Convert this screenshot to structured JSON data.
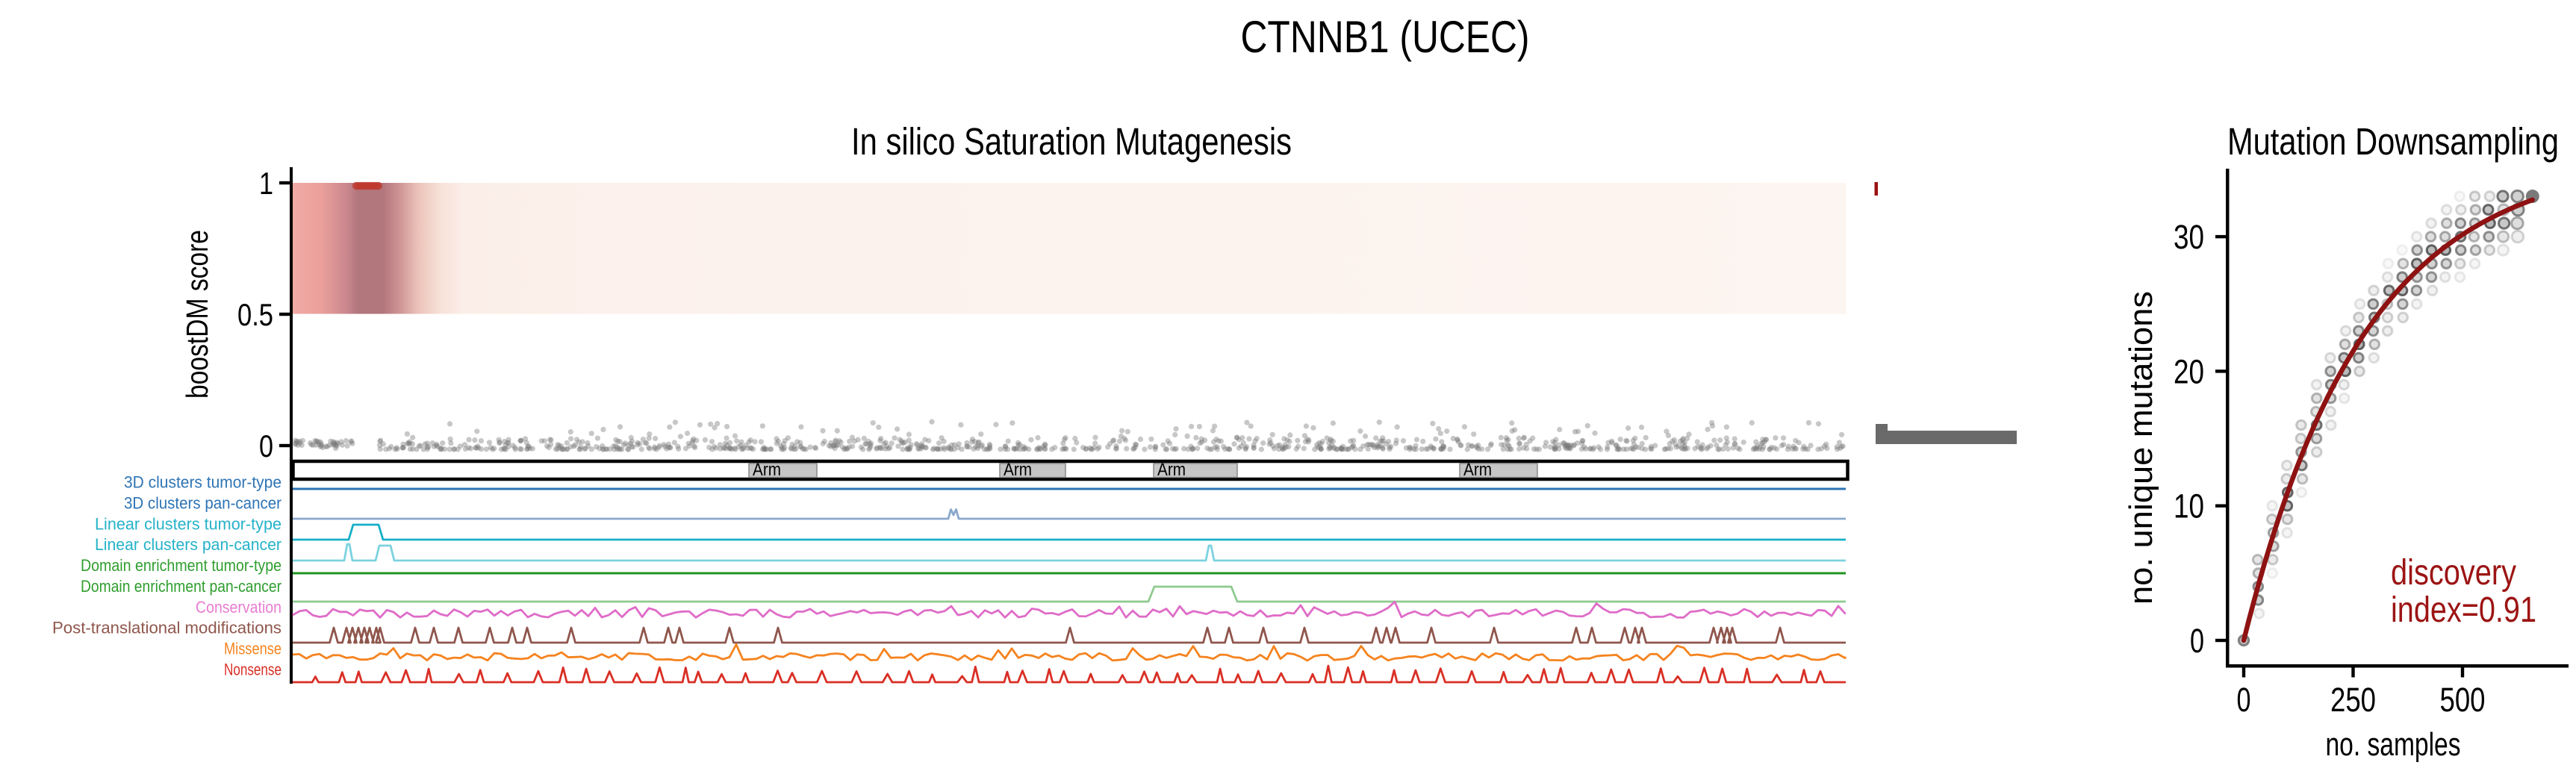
{
  "title": "CTNNB1 (UCEC)",
  "chart_data": [
    {
      "type": "scatter",
      "title": "In silico Saturation Mutagenesis",
      "ylabel": "boostDM score",
      "yticks": [
        "0",
        "0.5",
        "1"
      ],
      "ylim": [
        0,
        1
      ],
      "heatmap": {
        "stops": [
          [
            0,
            "#f0aaa5"
          ],
          [
            0.018,
            "#eba09b"
          ],
          [
            0.035,
            "#c9878d"
          ],
          [
            0.042,
            "#b2767d"
          ],
          [
            0.058,
            "#b2767d"
          ],
          [
            0.069,
            "#cf9595"
          ],
          [
            0.081,
            "#ecc3ba"
          ],
          [
            0.095,
            "#f7e2d8"
          ],
          [
            0.11,
            "#fbeee8"
          ],
          [
            0.2,
            "#fcf1ec"
          ],
          [
            1,
            "#fdf5f1"
          ]
        ]
      },
      "driver_cluster": {
        "x0": 472,
        "x1": 512,
        "score": 1,
        "color": "#bf3a2e"
      },
      "passenger_scatter": {
        "n": 1000,
        "seed": 12,
        "x0": 394,
        "x1": 2470,
        "gap": [
          473,
          508
        ],
        "color": "#7a7a7a"
      },
      "domains": {
        "label": "Arm",
        "fill": "#c6c6c6",
        "border": "#8a8a8a",
        "boxes": [
          [
            1003,
            1094
          ],
          [
            1339,
            1427
          ],
          [
            1545,
            1657
          ],
          [
            1955,
            2059
          ]
        ]
      },
      "tracks": [
        {
          "label": "3D clusters tumor-type",
          "color": "#2e74b4",
          "line": "#2e74b4",
          "y": 655,
          "shape": "flat"
        },
        {
          "label": "3D clusters pan-cancer",
          "color": "#2e74b4",
          "line": "#8aa8cd",
          "y": 695,
          "shape": "mpeak",
          "peak": {
            "x": 1277,
            "w": 14,
            "h": 12.5
          }
        },
        {
          "label": "Linear clusters tumor-type",
          "color": "#25b2c9",
          "line": "#17afc9",
          "y": 723,
          "shape": "bumps",
          "bumps": [
            [
              467,
              513,
              703,
              6
            ]
          ]
        },
        {
          "label": "Linear clusters pan-cancer",
          "color": "#25b2c9",
          "line": "#7cd2e0",
          "y": 751,
          "shape": "bumps",
          "bumps": [
            [
              461,
              472,
              729,
              4
            ],
            [
              503,
              528,
              731,
              5
            ],
            [
              1615,
              1626,
              731,
              4
            ]
          ]
        },
        {
          "label": "Domain enrichment tumor-type",
          "color": "#2f9e2f",
          "line": "#219321",
          "y": 768,
          "shape": "flat"
        },
        {
          "label": "Domain enrichment pan-cancer",
          "color": "#2f9e2f",
          "line": "#8fca8f",
          "y": 806,
          "shape": "bumps",
          "bumps": [
            [
              1538,
              1657,
              786,
              8
            ]
          ]
        },
        {
          "label": "Conservation",
          "color": "#e87cd3",
          "line": "#df6cc8",
          "y": 822,
          "shape": "noise",
          "noise": {
            "seed": 5,
            "amp": 5.5,
            "step": 9,
            "spike_p": 0.1,
            "spike_h": 8
          }
        },
        {
          "label": "Post-translational modifications",
          "color": "#8f564c",
          "line": "#8f564c",
          "y": 861,
          "shape": "spikes",
          "spike_h": 20,
          "spike_w": 11,
          "spikes": [
            447,
            464,
            472,
            480,
            488,
            495,
            504,
            509,
            556,
            581,
            614,
            656,
            686,
            706,
            765,
            862,
            895,
            910,
            977,
            1042,
            1433,
            1617,
            1646,
            1692,
            1747,
            1843,
            1857,
            1869,
            1917,
            2001,
            2111,
            2132,
            2176,
            2190,
            2199,
            2295,
            2305,
            2313,
            2320,
            2384
          ]
        },
        {
          "label": "Missense",
          "color": "#f5831f",
          "line": "#f5831f",
          "y": 880,
          "shape": "noise",
          "noise": {
            "seed": 9,
            "amp": 5,
            "step": 9,
            "spike_p": 0.09,
            "spike_h": 9
          }
        },
        {
          "label": "Nonsense",
          "color": "#d92f25",
          "line": "#d92f25",
          "y": 914,
          "shape": "spiky",
          "spiky": {
            "seed": 3,
            "gap_min": 6,
            "gap_max": 34,
            "h_min": 7,
            "h_max": 20,
            "w": 10
          }
        }
      ],
      "side_marks": {
        "red_tick": {
          "x": 2510.5,
          "y": 244,
          "w": 4.5,
          "h": 18,
          "color": "#9b1111"
        },
        "scale_bar": {
          "color": "#6a6a6a",
          "rects": [
            [
              2512,
              568,
              16,
              27
            ],
            [
              2528,
              577,
              173,
              18
            ]
          ]
        }
      }
    },
    {
      "type": "scatter",
      "title": "Mutation Downsampling",
      "xlabel": "no. samples",
      "ylabel": "no. unique mutations",
      "xticks": [
        0,
        250,
        500
      ],
      "yticks": [
        0,
        10,
        20,
        30
      ],
      "total_samples": 660,
      "max_unique_mutations": 33,
      "curve": {
        "A": 36,
        "k": 275,
        "color": "#8e1212",
        "formula": "unique = 36*(1-exp(-samples/275))"
      },
      "dots": {
        "seed": 7,
        "fraction_step": 0.05,
        "color": "#4a4a4a"
      },
      "annotation": {
        "line1": "discovery",
        "line2": "index=0.91",
        "color": "#9c1414"
      }
    }
  ]
}
